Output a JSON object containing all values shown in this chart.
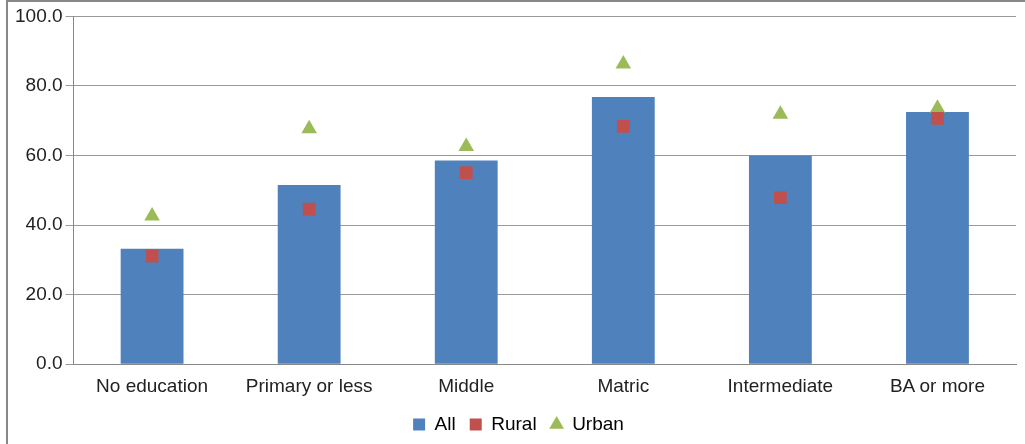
{
  "chart_data": {
    "type": "bar",
    "categories": [
      "No education",
      "Primary or less",
      "Middle",
      "Matric",
      "Intermediate",
      "BA or more"
    ],
    "series": [
      {
        "name": "All",
        "color": "#4f81bd",
        "values": [
          33.2,
          51.5,
          58.6,
          76.8,
          60.0,
          72.5
        ]
      },
      {
        "name": "Rural",
        "type": "scatter",
        "marker": "square",
        "color": "#c0504d",
        "values": [
          31.1,
          44.6,
          55.1,
          68.4,
          47.9,
          70.7
        ]
      },
      {
        "name": "Urban",
        "type": "scatter",
        "marker": "triangle",
        "color": "#9bbb59",
        "values": [
          42.6,
          67.7,
          62.6,
          86.3,
          71.9,
          73.6
        ]
      }
    ],
    "ylim": [
      0,
      100
    ],
    "yticks": [
      {
        "value": 0,
        "label": "0.0"
      },
      {
        "value": 20,
        "label": "20.0"
      },
      {
        "value": 40,
        "label": "40.0"
      },
      {
        "value": 60,
        "label": "60.0"
      },
      {
        "value": 80,
        "label": "80.0"
      },
      {
        "value": 100,
        "label": "100.0"
      }
    ],
    "grid": "y",
    "legend": "bottom"
  }
}
